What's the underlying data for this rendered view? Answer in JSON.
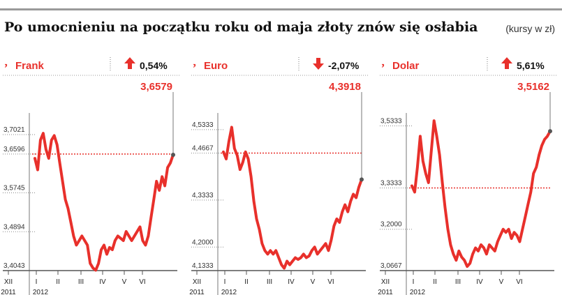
{
  "header": {
    "title": "Po umocnieniu na początku roku od maja złoty znów się osłabia",
    "units_note": "(kursy w zł)"
  },
  "colors": {
    "line": "#e8302b",
    "accent": "#e8302b",
    "axis": "#555555",
    "grid": "#888888",
    "divider": "#9a9a9a"
  },
  "chart_data": [
    {
      "type": "line",
      "name": "Frank",
      "change": "0,54%",
      "direction": "up",
      "last_value_label": "3,6579",
      "reference_value": 3.6596,
      "ylim": [
        3.4043,
        3.78
      ],
      "yticks": [
        3.4043,
        3.4894,
        3.5745,
        3.6596,
        3.7021
      ],
      "ytick_labels": [
        "3,4043",
        "3,4894",
        "3,5745",
        "3,6596",
        "3,7021"
      ],
      "month_labels": [
        "XII",
        "I",
        "II",
        "III",
        "IV",
        "V",
        "VI"
      ],
      "year_labels": [
        "2011",
        "2012"
      ],
      "x": [
        0,
        2,
        4,
        6,
        8,
        10,
        12,
        14,
        16,
        18,
        20,
        22,
        24,
        26,
        28,
        30,
        32,
        34,
        36,
        38,
        40,
        42,
        44,
        46,
        48,
        50,
        52,
        54,
        56,
        58,
        60,
        62,
        64,
        66,
        68,
        70,
        72,
        74,
        76,
        78,
        80,
        82,
        84,
        86,
        88,
        90,
        92,
        94,
        96,
        98,
        100
      ],
      "values": [
        3.65,
        3.625,
        3.69,
        3.705,
        3.67,
        3.65,
        3.69,
        3.7,
        3.68,
        3.64,
        3.6,
        3.56,
        3.54,
        3.51,
        3.48,
        3.46,
        3.47,
        3.48,
        3.47,
        3.46,
        3.42,
        3.41,
        3.405,
        3.42,
        3.45,
        3.46,
        3.44,
        3.455,
        3.45,
        3.47,
        3.48,
        3.475,
        3.47,
        3.49,
        3.48,
        3.47,
        3.48,
        3.49,
        3.5,
        3.47,
        3.46,
        3.48,
        3.52,
        3.56,
        3.6,
        3.58,
        3.61,
        3.59,
        3.63,
        3.64,
        3.6579
      ]
    },
    {
      "type": "line",
      "name": "Euro",
      "change": "-2,07%",
      "direction": "down",
      "last_value_label": "4,3918",
      "reference_value": 4.4667,
      "ylim": [
        4.1333,
        4.62
      ],
      "yticks": [
        4.1333,
        4.2,
        4.3333,
        4.4667,
        4.5333
      ],
      "ytick_labels": [
        "4,1333",
        "4,2000",
        "4,3333",
        "4,4667",
        "4,5333"
      ],
      "month_labels": [
        "XII",
        "I",
        "II",
        "III",
        "IV",
        "V",
        "VI"
      ],
      "year_labels": [
        "2011",
        "2012"
      ],
      "x": [
        0,
        2,
        4,
        6,
        8,
        10,
        12,
        14,
        16,
        18,
        20,
        22,
        24,
        26,
        28,
        30,
        32,
        34,
        36,
        38,
        40,
        42,
        44,
        46,
        48,
        50,
        52,
        54,
        56,
        58,
        60,
        62,
        64,
        66,
        68,
        70,
        72,
        74,
        76,
        78,
        80,
        82,
        84,
        86,
        88,
        90,
        92,
        94,
        96,
        98,
        100
      ],
      "values": [
        4.47,
        4.45,
        4.5,
        4.54,
        4.48,
        4.46,
        4.42,
        4.44,
        4.47,
        4.45,
        4.4,
        4.33,
        4.28,
        4.25,
        4.21,
        4.19,
        4.18,
        4.19,
        4.18,
        4.19,
        4.17,
        4.15,
        4.14,
        4.16,
        4.15,
        4.16,
        4.17,
        4.165,
        4.17,
        4.18,
        4.17,
        4.175,
        4.19,
        4.2,
        4.18,
        4.19,
        4.2,
        4.21,
        4.19,
        4.22,
        4.26,
        4.28,
        4.27,
        4.3,
        4.32,
        4.3,
        4.33,
        4.35,
        4.34,
        4.37,
        4.3918
      ]
    },
    {
      "type": "line",
      "name": "Dolar",
      "change": "5,61%",
      "direction": "up",
      "last_value_label": "3,5162",
      "reference_value": 3.3333,
      "ylim": [
        3.0667,
        3.62
      ],
      "yticks": [
        3.0667,
        3.2,
        3.3333,
        3.5333
      ],
      "ytick_labels": [
        "3,0667",
        "3,2000",
        "3,3333",
        "3,5333"
      ],
      "month_labels": [
        "XII",
        "I",
        "II",
        "III",
        "IV",
        "V",
        "VI"
      ],
      "year_labels": [
        "2011",
        "2012"
      ],
      "x": [
        0,
        2,
        4,
        6,
        8,
        10,
        12,
        14,
        16,
        18,
        20,
        22,
        24,
        26,
        28,
        30,
        32,
        34,
        36,
        38,
        40,
        42,
        44,
        46,
        48,
        50,
        52,
        54,
        56,
        58,
        60,
        62,
        64,
        66,
        68,
        70,
        72,
        74,
        76,
        78,
        80,
        82,
        84,
        86,
        88,
        90,
        92,
        94,
        96,
        98,
        100
      ],
      "values": [
        3.34,
        3.32,
        3.4,
        3.5,
        3.42,
        3.38,
        3.35,
        3.45,
        3.55,
        3.5,
        3.44,
        3.35,
        3.27,
        3.2,
        3.15,
        3.12,
        3.1,
        3.13,
        3.11,
        3.1,
        3.08,
        3.09,
        3.12,
        3.14,
        3.13,
        3.15,
        3.14,
        3.12,
        3.15,
        3.14,
        3.13,
        3.16,
        3.18,
        3.2,
        3.19,
        3.2,
        3.17,
        3.19,
        3.18,
        3.16,
        3.2,
        3.24,
        3.28,
        3.32,
        3.38,
        3.4,
        3.44,
        3.47,
        3.49,
        3.5,
        3.5162
      ]
    }
  ]
}
